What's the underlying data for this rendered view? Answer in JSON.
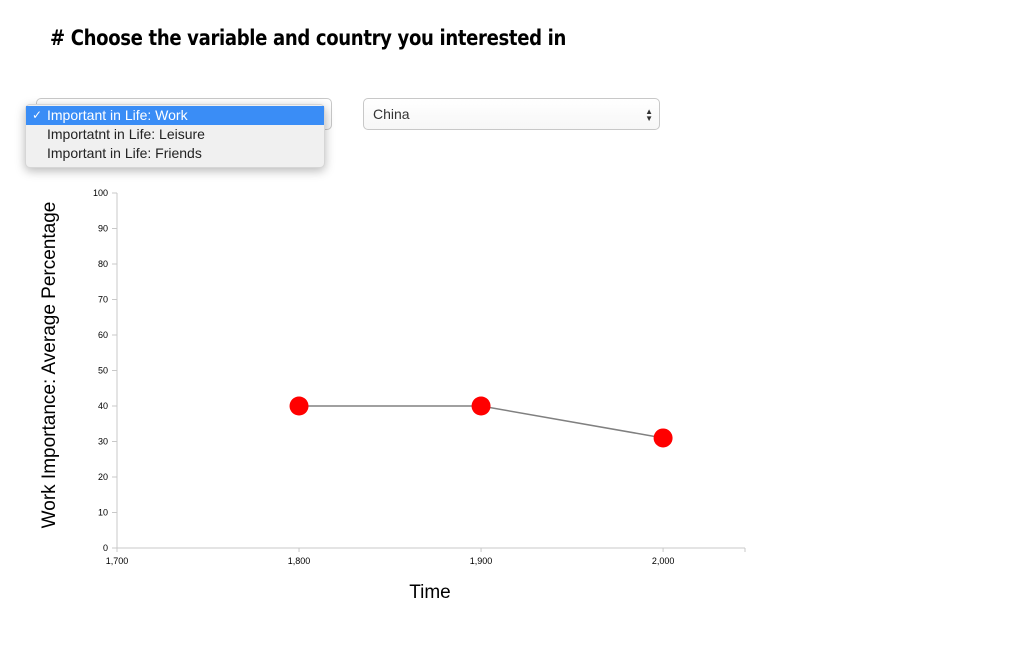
{
  "header": {
    "title": "# Choose the variable and country you interested in"
  },
  "variable_select": {
    "selected": "Important in Life: Work",
    "options": [
      "Important in Life: Work",
      "Importatnt in Life: Leisure",
      "Important in Life: Friends"
    ],
    "check_icon": "check-icon"
  },
  "country_select": {
    "selected": "China"
  },
  "colors": {
    "point": "#ff0000",
    "line": "#808080",
    "dropdown_highlight": "#3a8df6"
  },
  "chart_data": {
    "type": "line",
    "title": "",
    "xlabel": "Time",
    "ylabel": "Work Importance: Average Percentage",
    "x": [
      1800,
      1900,
      2000
    ],
    "series": [
      {
        "values": [
          40,
          40,
          31
        ]
      }
    ],
    "xlim": [
      1700,
      2045
    ],
    "ylim": [
      0,
      100
    ],
    "x_ticks": [
      1700,
      1800,
      1900,
      2000
    ],
    "x_tick_labels": [
      "1,700",
      "1,800",
      "1,900",
      "2,000"
    ],
    "y_ticks": [
      0,
      10,
      20,
      30,
      40,
      50,
      60,
      70,
      80,
      90,
      100
    ],
    "y_tick_labels": [
      "0",
      "10",
      "20",
      "30",
      "40",
      "50",
      "60",
      "70",
      "80",
      "90",
      "100"
    ],
    "grid": false,
    "legend": "none"
  }
}
